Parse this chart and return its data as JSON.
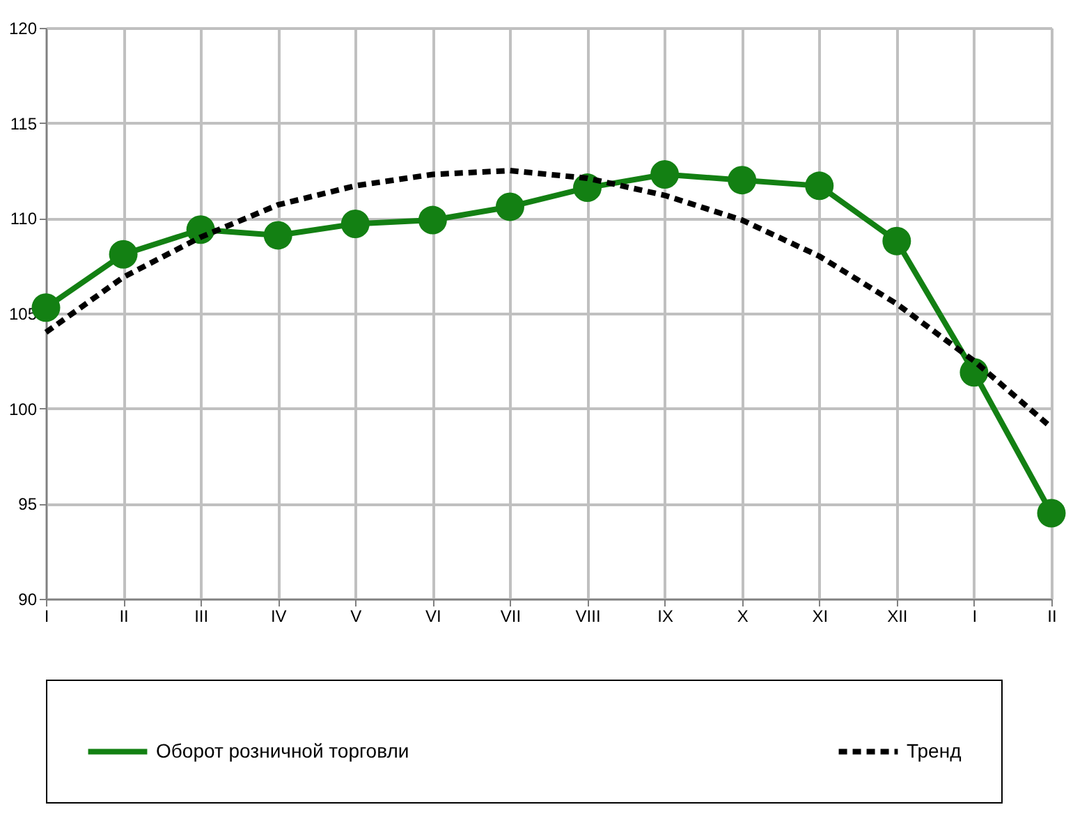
{
  "chart_data": {
    "type": "line",
    "categories": [
      "I",
      "II",
      "III",
      "IV",
      "V",
      "VI",
      "VII",
      "VIII",
      "IX",
      "X",
      "XI",
      "XII",
      "I",
      "II"
    ],
    "series": [
      {
        "name": "Оборот розничной торговли",
        "color": "#138013",
        "marker": "circle",
        "line_style": "solid",
        "values": [
          105.3,
          108.1,
          109.4,
          109.1,
          109.7,
          109.9,
          110.6,
          111.6,
          112.3,
          112.0,
          111.7,
          108.8,
          101.9,
          94.5
        ]
      },
      {
        "name": "Тренд",
        "color": "#000000",
        "marker": "none",
        "line_style": "dashed",
        "values": [
          104.0,
          106.9,
          109.0,
          110.7,
          111.7,
          112.3,
          112.5,
          112.1,
          111.2,
          109.9,
          108.0,
          105.5,
          102.5,
          99.0
        ]
      }
    ],
    "ylim": [
      90,
      120
    ],
    "yticks": [
      90,
      95,
      100,
      105,
      110,
      115,
      120
    ],
    "grid": true,
    "legend": "bottom"
  }
}
